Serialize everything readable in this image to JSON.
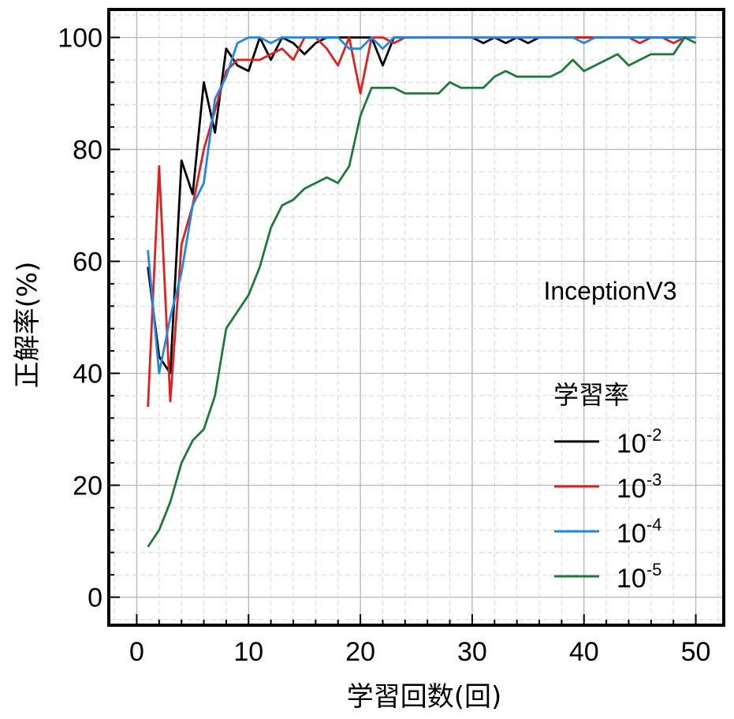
{
  "chart_data": {
    "type": "line",
    "xlabel": "学習回数(回)",
    "ylabel": "正解率(%)",
    "xlim": [
      -2.5,
      52.5
    ],
    "ylim": [
      -5,
      105
    ],
    "xticks": [
      0,
      10,
      20,
      30,
      40,
      50
    ],
    "yticks": [
      0,
      20,
      40,
      60,
      80,
      100
    ],
    "xtick_labels": [
      "0",
      "10",
      "20",
      "30",
      "40",
      "50"
    ],
    "ytick_labels": [
      "0",
      "20",
      "40",
      "60",
      "80",
      "100"
    ],
    "grid": true,
    "annotation": "InceptionV3",
    "legend_title": "学習率",
    "legend_position": "lower-right",
    "x": [
      1,
      2,
      3,
      4,
      5,
      6,
      7,
      8,
      9,
      10,
      11,
      12,
      13,
      14,
      15,
      16,
      17,
      18,
      19,
      20,
      21,
      22,
      23,
      24,
      25,
      26,
      27,
      28,
      29,
      30,
      31,
      32,
      33,
      34,
      35,
      36,
      37,
      38,
      39,
      40,
      41,
      42,
      43,
      44,
      45,
      46,
      47,
      48,
      49,
      50
    ],
    "series": [
      {
        "name": "10",
        "exponent": "-2",
        "color": "#000000",
        "values": [
          59,
          43,
          40,
          78,
          72,
          92,
          83,
          98,
          95,
          94,
          100,
          96,
          100,
          99,
          97,
          99,
          100,
          100,
          100,
          100,
          100,
          95,
          100,
          100,
          100,
          100,
          100,
          100,
          100,
          100,
          99,
          100,
          99,
          100,
          99,
          100,
          100,
          100,
          100,
          100,
          100,
          100,
          100,
          100,
          100,
          100,
          100,
          100,
          100,
          100
        ]
      },
      {
        "name": "10",
        "exponent": "-3",
        "color": "#e01f1f",
        "values": [
          34,
          77,
          35,
          63,
          70,
          80,
          87,
          94,
          96,
          96,
          96,
          97,
          98,
          96,
          100,
          100,
          98,
          95,
          100,
          90,
          100,
          100,
          99,
          100,
          100,
          100,
          100,
          100,
          100,
          100,
          100,
          100,
          100,
          100,
          100,
          100,
          100,
          100,
          100,
          100,
          100,
          100,
          100,
          100,
          99,
          100,
          100,
          99,
          100,
          100
        ]
      },
      {
        "name": "10",
        "exponent": "-4",
        "color": "#1f88e5",
        "values": [
          62,
          40,
          50,
          58,
          70,
          74,
          89,
          93,
          99,
          100,
          100,
          99,
          100,
          100,
          100,
          100,
          100,
          100,
          98,
          98,
          100,
          98,
          100,
          100,
          100,
          100,
          100,
          100,
          100,
          100,
          100,
          100,
          100,
          100,
          100,
          100,
          100,
          100,
          100,
          99,
          100,
          100,
          100,
          100,
          100,
          100,
          100,
          100,
          100,
          100
        ]
      },
      {
        "name": "10",
        "exponent": "-5",
        "color": "#1e7a3c",
        "values": [
          9,
          12,
          17,
          24,
          28,
          30,
          36,
          48,
          51,
          54,
          59,
          66,
          70,
          71,
          73,
          74,
          75,
          74,
          77,
          86,
          91,
          91,
          91,
          90,
          90,
          90,
          90,
          92,
          91,
          91,
          91,
          93,
          94,
          93,
          93,
          93,
          93,
          94,
          96,
          94,
          95,
          96,
          97,
          95,
          96,
          97,
          97,
          97,
          100,
          99
        ]
      }
    ]
  }
}
